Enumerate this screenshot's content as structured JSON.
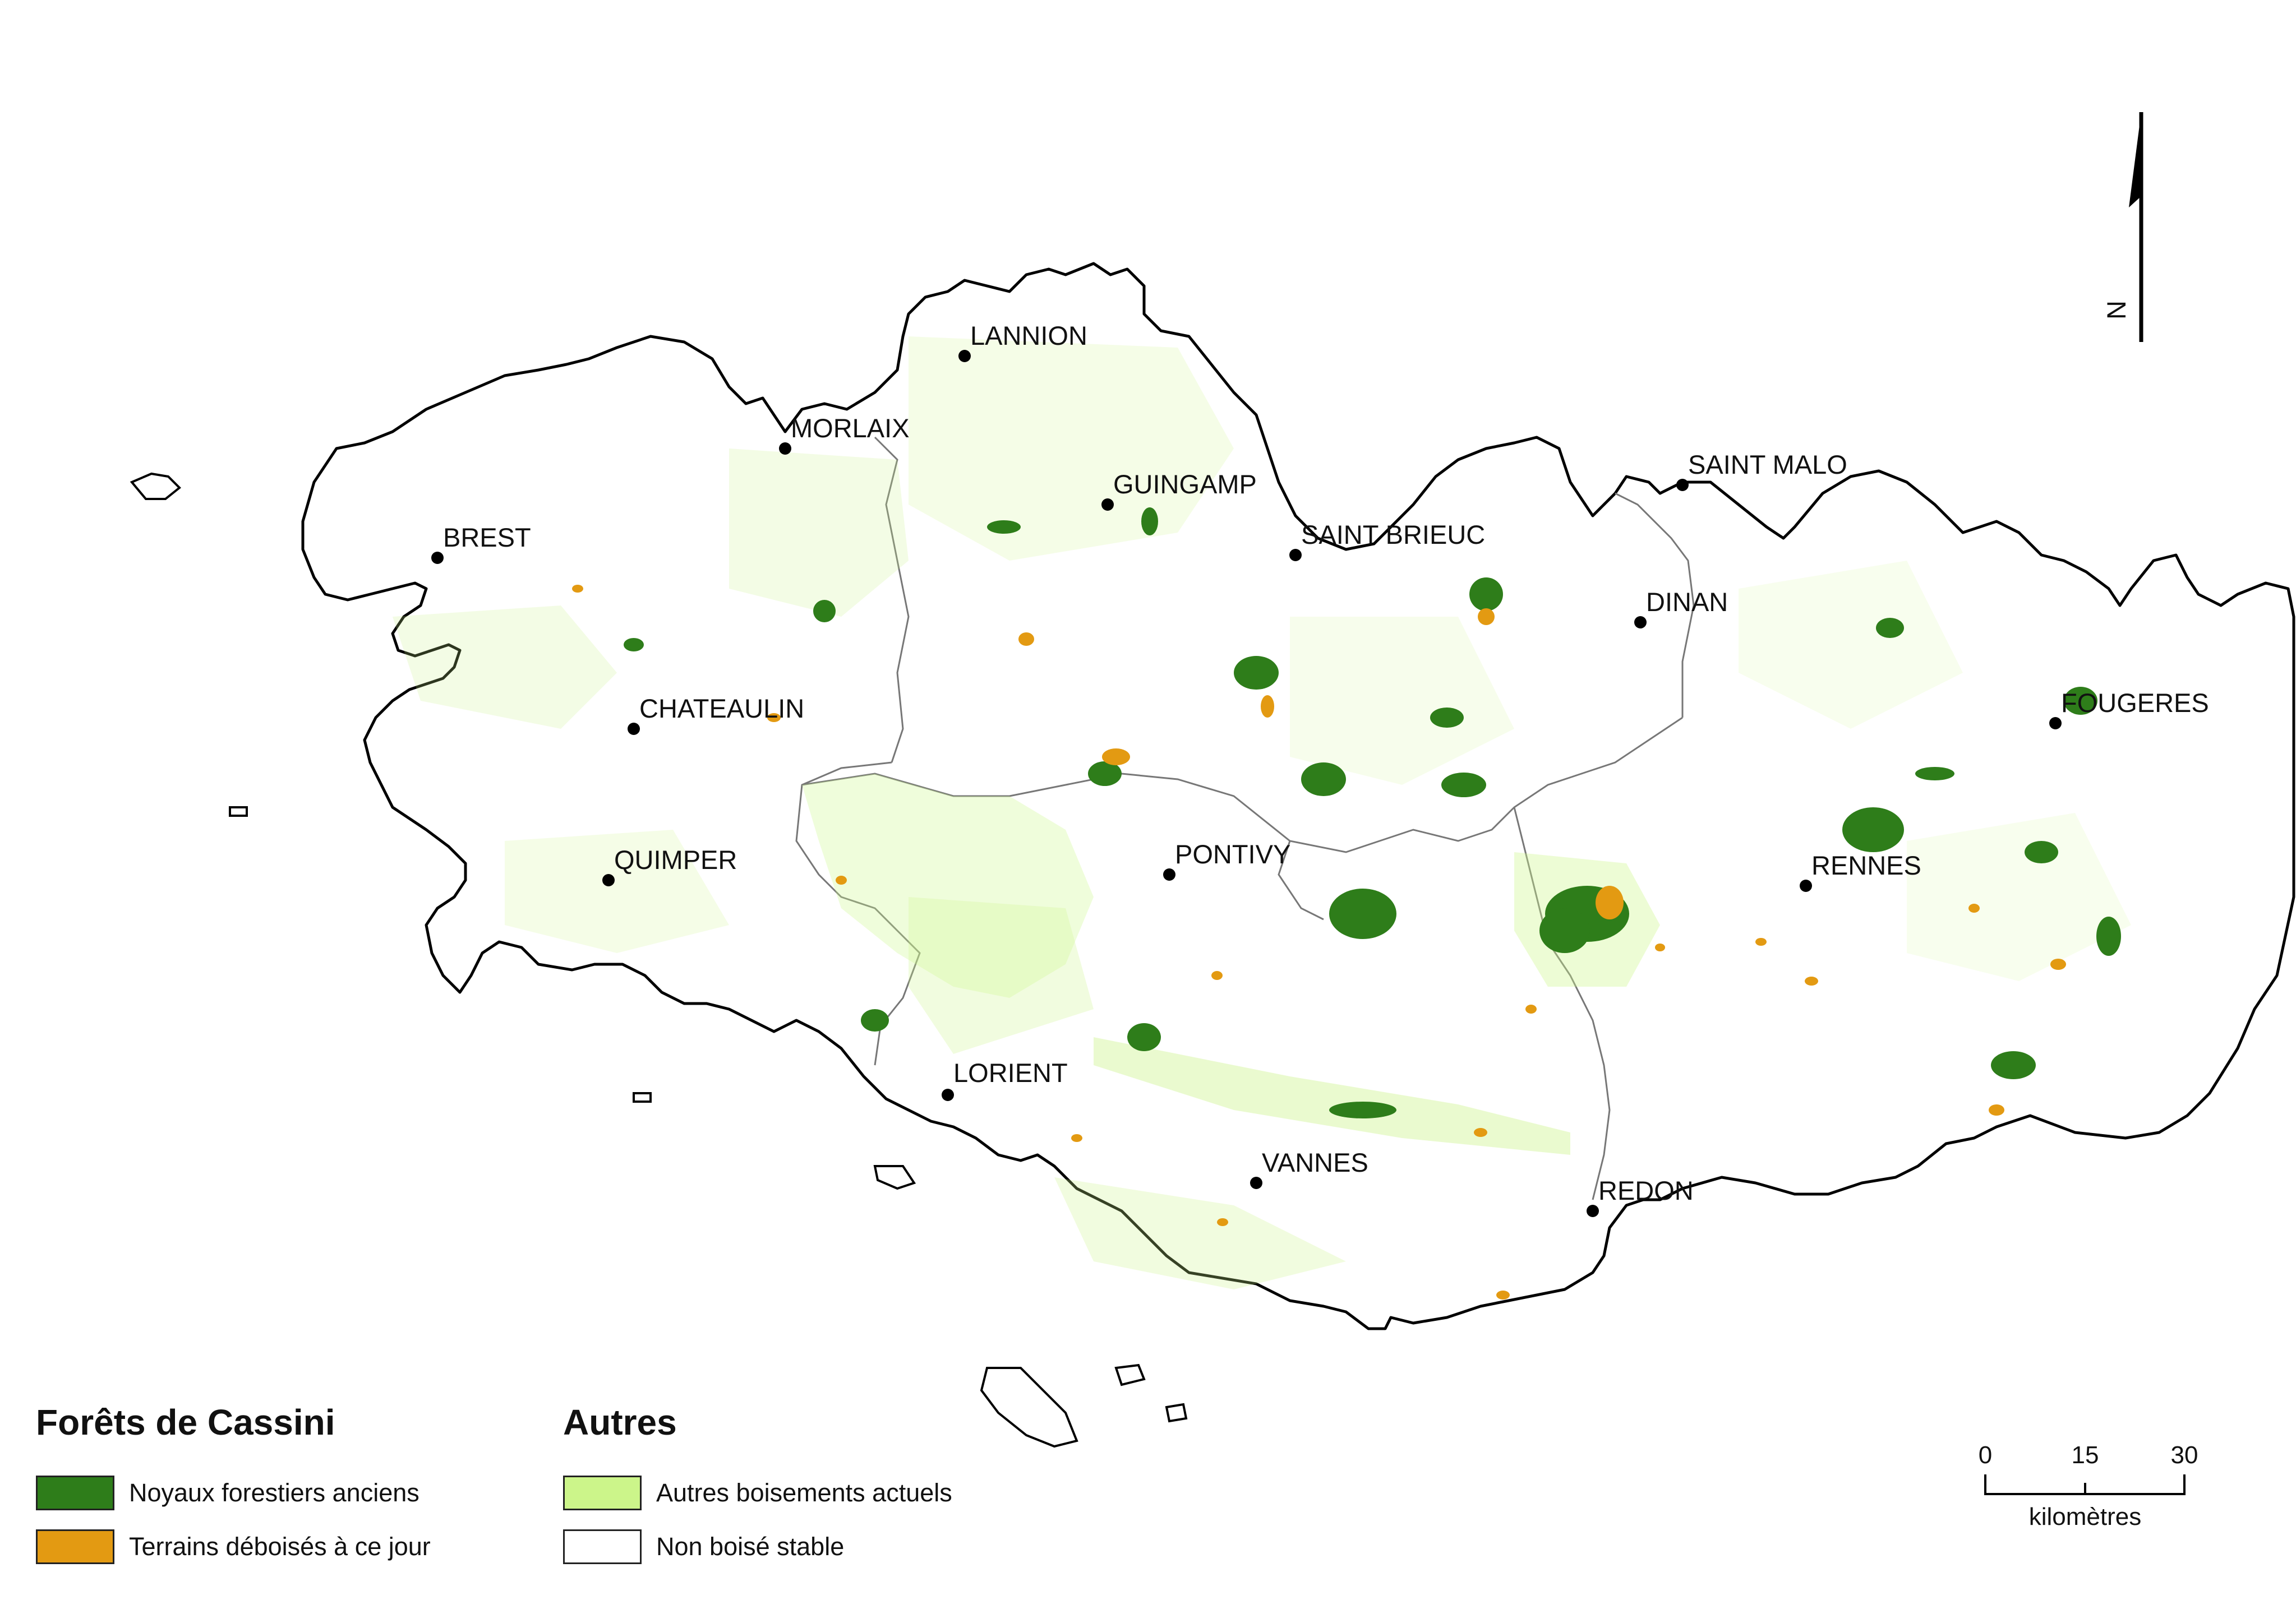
{
  "map": {
    "colors": {
      "outline": "#000000",
      "inner_boundary": "#777777",
      "ancient_forest": "#2e7d1a",
      "cleared_land": "#e39a12",
      "other_woodland": "#ccf58a",
      "stable_non_wooded": "#ffffff"
    },
    "cities": [
      {
        "name": "LANNION"
      },
      {
        "name": "MORLAIX"
      },
      {
        "name": "GUINGAMP"
      },
      {
        "name": "SAINT MALO"
      },
      {
        "name": "SAINT BRIEUC"
      },
      {
        "name": "BREST"
      },
      {
        "name": "DINAN"
      },
      {
        "name": "CHATEAULIN"
      },
      {
        "name": "FOUGERES"
      },
      {
        "name": "PONTIVY"
      },
      {
        "name": "QUIMPER"
      },
      {
        "name": "RENNES"
      },
      {
        "name": "LORIENT"
      },
      {
        "name": "VANNES"
      },
      {
        "name": "REDON"
      }
    ],
    "north_arrow": {
      "label": "N",
      "icon": "north-arrow-icon"
    }
  },
  "legend": {
    "group1": {
      "title": "Forêts de Cassini",
      "items": [
        {
          "label": "Noyaux forestiers anciens",
          "color": "#2e7d1a"
        },
        {
          "label": "Terrains déboisés à ce jour",
          "color": "#e39a12"
        }
      ]
    },
    "group2": {
      "title": "Autres",
      "items": [
        {
          "label": "Autres boisements actuels",
          "color": "#ccf58a"
        },
        {
          "label": "Non boisé stable",
          "color": "#ffffff"
        }
      ]
    }
  },
  "scale_bar": {
    "ticks": [
      "0",
      "15",
      "30"
    ],
    "unit": "kilomètres"
  }
}
